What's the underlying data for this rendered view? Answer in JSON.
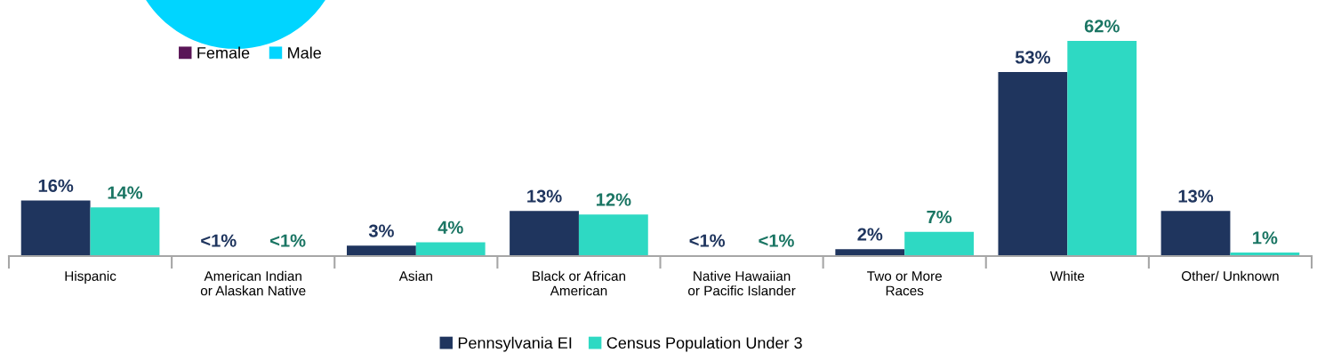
{
  "chart_data": [
    {
      "type": "other",
      "categories": [
        "Female",
        "Male"
      ],
      "colors": [
        "#5a1557",
        "#00d5ff"
      ]
    },
    {
      "type": "bar",
      "categories": [
        "Hispanic",
        "American Indian\nor Alaskan Native",
        "Asian",
        "Black or African\nAmerican",
        "Native Hawaiian\nor Pacific Islander",
        "Two or More\nRaces",
        "White",
        "Other/ Unknown"
      ],
      "series": [
        {
          "name": "Pennsylvania EI",
          "color": "#1f355e",
          "values": [
            16,
            0.2,
            3,
            13,
            0.2,
            2,
            53,
            13
          ],
          "value_labels": [
            "16%",
            "<1%",
            "3%",
            "13%",
            "<1%",
            "2%",
            "53%",
            "13%"
          ]
        },
        {
          "name": "Census Population Under 3",
          "color": "#2ed9c3",
          "values": [
            14,
            0.2,
            4,
            12,
            0.2,
            7,
            62,
            1
          ],
          "value_labels": [
            "14%",
            "<1%",
            "4%",
            "12%",
            "<1%",
            "7%",
            "62%",
            "1%"
          ]
        }
      ],
      "legend": "bottom",
      "tick_labels": "x",
      "grid": false
    }
  ]
}
